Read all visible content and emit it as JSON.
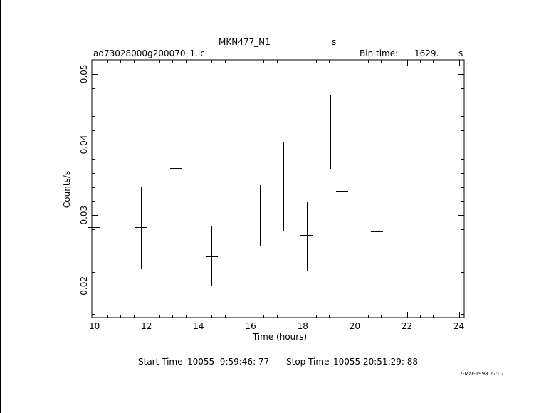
{
  "header": {
    "object": "MKN477_N1",
    "object_unit": "s",
    "filename": "ad73028000g200070_1.lc",
    "bin_label": "Bin time:",
    "bin_value": "1629.",
    "bin_unit": "s"
  },
  "footer": {
    "start_label": "Start Time",
    "start_value": "10055  9:59:46: 77",
    "stop_label": "Stop Time",
    "stop_value": "10055 20:51:29: 88",
    "timestamp": "17-Mar-1998 22:07"
  },
  "chart_data": {
    "type": "scatter",
    "title": "MKN477_N1",
    "xlabel": "Time (hours)",
    "ylabel": "Counts/s",
    "xlim": [
      9.9,
      24.2
    ],
    "ylim": [
      0.0155,
      0.052
    ],
    "xticks": [
      10,
      12,
      14,
      16,
      18,
      20,
      22,
      24
    ],
    "yticks": [
      0.02,
      0.03,
      0.04,
      0.05
    ],
    "ytick_labels": [
      "0.02",
      "0.03",
      "0.04",
      "0.05"
    ],
    "grid": false,
    "points": [
      {
        "x": 10.0,
        "y": 0.0283,
        "xerr": 0.23,
        "ylo": 0.0241,
        "yhi": 0.0325
      },
      {
        "x": 11.35,
        "y": 0.0278,
        "xerr": 0.23,
        "ylo": 0.0229,
        "yhi": 0.0327
      },
      {
        "x": 11.8,
        "y": 0.0283,
        "xerr": 0.23,
        "ylo": 0.0224,
        "yhi": 0.0341
      },
      {
        "x": 13.15,
        "y": 0.0367,
        "xerr": 0.23,
        "ylo": 0.0318,
        "yhi": 0.0415
      },
      {
        "x": 14.5,
        "y": 0.0242,
        "xerr": 0.23,
        "ylo": 0.0199,
        "yhi": 0.0284
      },
      {
        "x": 14.95,
        "y": 0.0369,
        "xerr": 0.23,
        "ylo": 0.0311,
        "yhi": 0.0426
      },
      {
        "x": 15.9,
        "y": 0.0345,
        "xerr": 0.23,
        "ylo": 0.0299,
        "yhi": 0.0392
      },
      {
        "x": 16.35,
        "y": 0.0299,
        "xerr": 0.23,
        "ylo": 0.0256,
        "yhi": 0.0343
      },
      {
        "x": 17.25,
        "y": 0.0341,
        "xerr": 0.23,
        "ylo": 0.0278,
        "yhi": 0.0404
      },
      {
        "x": 17.7,
        "y": 0.0211,
        "xerr": 0.23,
        "ylo": 0.0173,
        "yhi": 0.0249
      },
      {
        "x": 18.15,
        "y": 0.0272,
        "xerr": 0.23,
        "ylo": 0.0222,
        "yhi": 0.0318
      },
      {
        "x": 19.05,
        "y": 0.0418,
        "xerr": 0.23,
        "ylo": 0.0365,
        "yhi": 0.0471
      },
      {
        "x": 19.5,
        "y": 0.0334,
        "xerr": 0.23,
        "ylo": 0.0276,
        "yhi": 0.0392
      },
      {
        "x": 20.85,
        "y": 0.0277,
        "xerr": 0.23,
        "ylo": 0.0233,
        "yhi": 0.032
      }
    ]
  }
}
